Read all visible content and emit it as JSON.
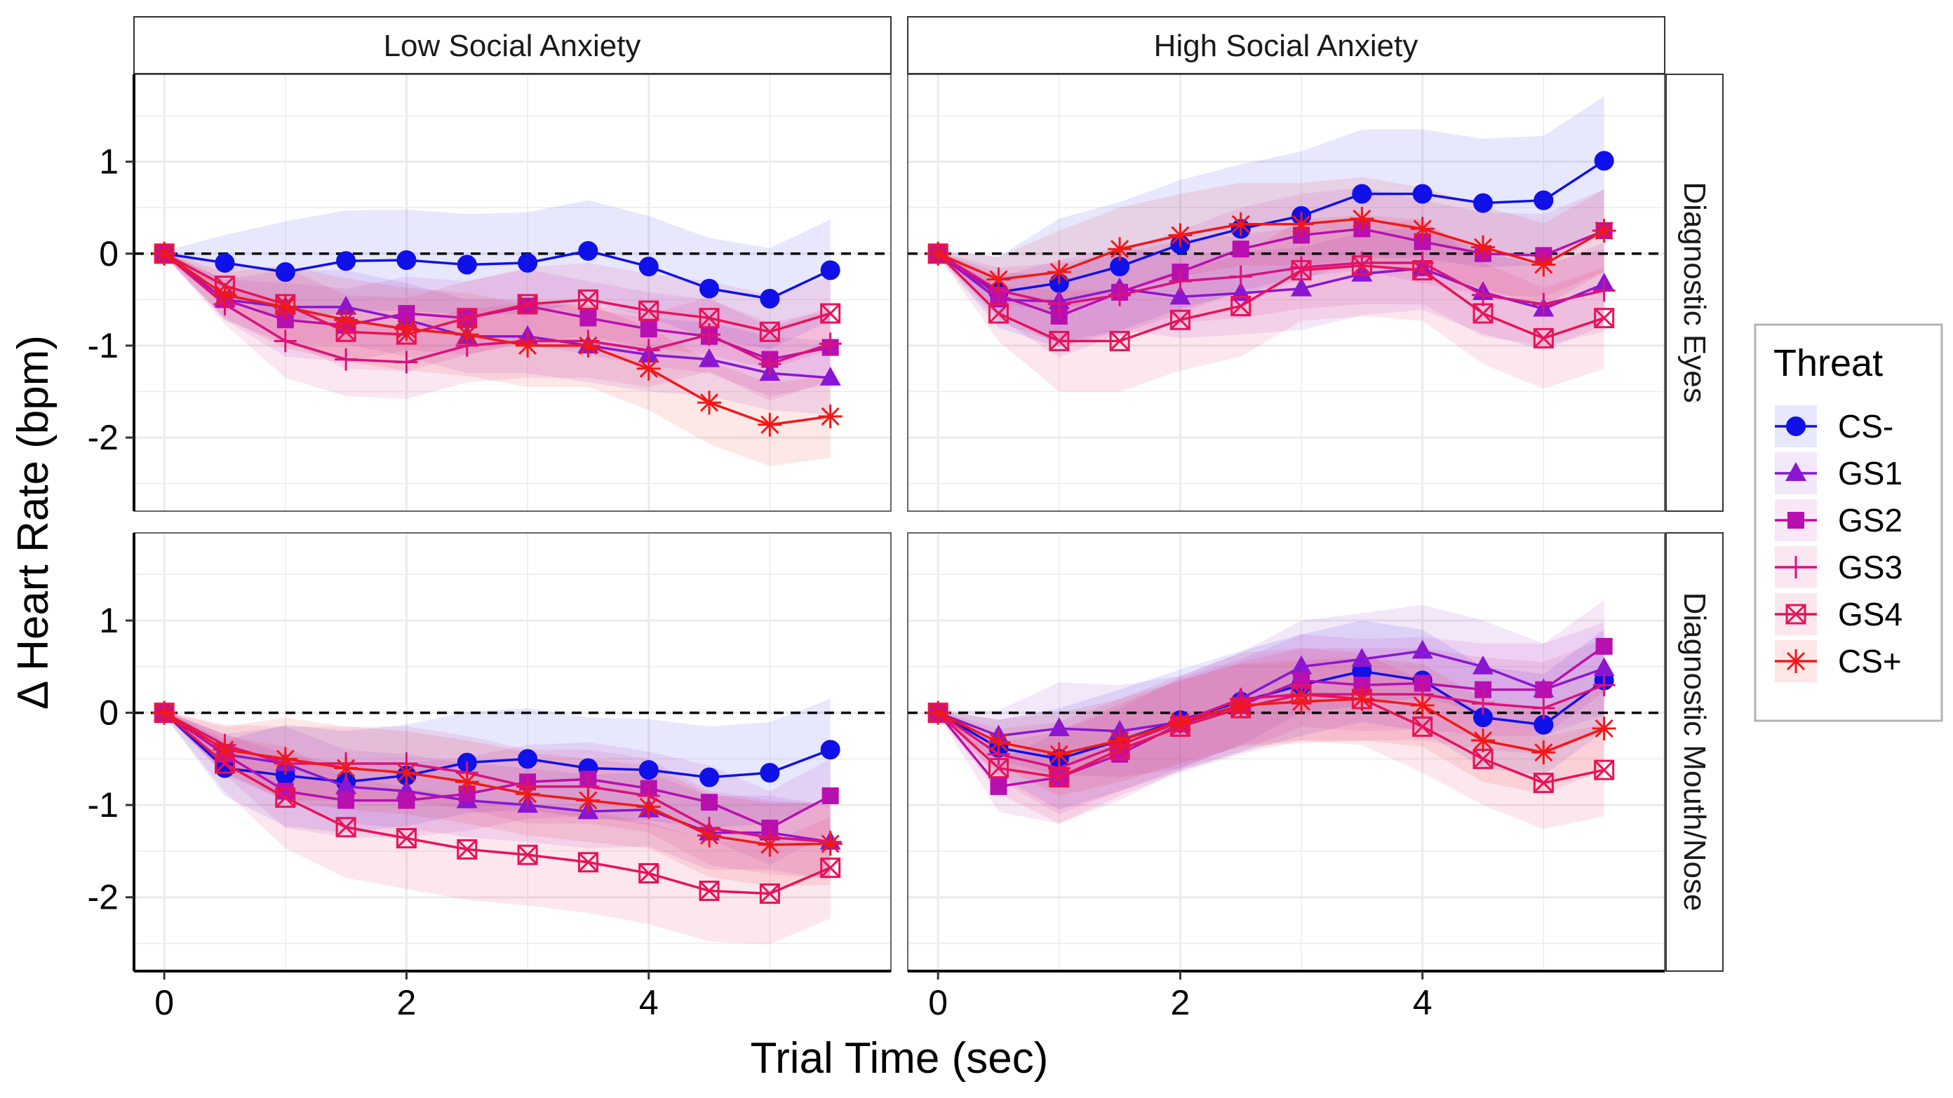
{
  "chart_data": {
    "type": "line",
    "xlabel": "Trial Time (sec)",
    "ylabel": "Δ Heart Rate (bpm)",
    "xlim": [
      -0.25,
      6.0
    ],
    "ylim": [
      -2.8,
      1.95
    ],
    "x_ticks": [
      0,
      2,
      4
    ],
    "y_ticks": [
      1,
      0,
      -1,
      -2
    ],
    "x": [
      0,
      0.5,
      1,
      1.5,
      2,
      2.5,
      3,
      3.5,
      4,
      4.5,
      5,
      5.5
    ],
    "reference_line": 0,
    "grid": true,
    "columns": [
      "Low Social Anxiety",
      "High Social Anxiety"
    ],
    "rows": [
      "Diagnostic Eyes",
      "Diagnostic Mouth/Nose"
    ],
    "legend": {
      "title": "Threat",
      "position": "right",
      "entries": [
        "CS-",
        "GS1",
        "GS2",
        "GS3",
        "GS4",
        "CS+"
      ]
    },
    "series_style": {
      "CS-": {
        "color": "#1010E8",
        "marker": "circle"
      },
      "GS1": {
        "color": "#8A16D2",
        "marker": "triangle"
      },
      "GS2": {
        "color": "#B80FB0",
        "marker": "square"
      },
      "GS3": {
        "color": "#D8127E",
        "marker": "plus"
      },
      "GS4": {
        "color": "#E81258",
        "marker": "boxx"
      },
      "CS+": {
        "color": "#F01818",
        "marker": "asterisk"
      }
    },
    "panels": [
      {
        "column": "Low Social Anxiety",
        "row": "Diagnostic Eyes",
        "series": [
          {
            "name": "CS-",
            "values": [
              0,
              -0.1,
              -0.2,
              -0.08,
              -0.07,
              -0.12,
              -0.1,
              0.03,
              -0.14,
              -0.38,
              -0.49,
              -0.18
            ],
            "band": 0.55
          },
          {
            "name": "GS1",
            "values": [
              0,
              -0.5,
              -0.58,
              -0.58,
              -0.72,
              -0.9,
              -0.9,
              -1.0,
              -1.1,
              -1.15,
              -1.3,
              -1.35
            ],
            "band": 0.4
          },
          {
            "name": "GS2",
            "values": [
              0,
              -0.5,
              -0.72,
              -0.78,
              -0.65,
              -0.7,
              -0.57,
              -0.7,
              -0.82,
              -0.9,
              -1.15,
              -1.02
            ],
            "band": 0.4
          },
          {
            "name": "GS3",
            "values": [
              0,
              -0.55,
              -0.95,
              -1.15,
              -1.18,
              -1.0,
              -0.95,
              -0.95,
              -1.05,
              -0.88,
              -1.2,
              -0.98
            ],
            "band": 0.4
          },
          {
            "name": "GS4",
            "values": [
              0,
              -0.35,
              -0.55,
              -0.85,
              -0.88,
              -0.7,
              -0.55,
              -0.5,
              -0.62,
              -0.7,
              -0.85,
              -0.65
            ],
            "band": 0.4
          },
          {
            "name": "CS+",
            "values": [
              0,
              -0.45,
              -0.58,
              -0.72,
              -0.82,
              -0.88,
              -1.0,
              -1.0,
              -1.25,
              -1.62,
              -1.86,
              -1.77
            ],
            "band": 0.45
          }
        ]
      },
      {
        "column": "High Social Anxiety",
        "row": "Diagnostic Eyes",
        "series": [
          {
            "name": "CS-",
            "values": [
              0,
              -0.42,
              -0.32,
              -0.14,
              0.1,
              0.27,
              0.41,
              0.65,
              0.65,
              0.55,
              0.58,
              1.01
            ],
            "band": 0.7
          },
          {
            "name": "GS1",
            "values": [
              0,
              -0.5,
              -0.52,
              -0.38,
              -0.47,
              -0.43,
              -0.38,
              -0.22,
              -0.16,
              -0.42,
              -0.6,
              -0.33
            ],
            "band": 0.45
          },
          {
            "name": "GS2",
            "values": [
              0,
              -0.45,
              -0.68,
              -0.42,
              -0.2,
              0.05,
              0.2,
              0.27,
              0.13,
              0.0,
              -0.02,
              0.25
            ],
            "band": 0.45
          },
          {
            "name": "GS3",
            "values": [
              0,
              -0.4,
              -0.55,
              -0.45,
              -0.3,
              -0.25,
              -0.15,
              -0.1,
              -0.1,
              -0.45,
              -0.55,
              -0.4
            ],
            "band": 0.45
          },
          {
            "name": "GS4",
            "values": [
              0,
              -0.65,
              -0.95,
              -0.95,
              -0.72,
              -0.57,
              -0.18,
              -0.13,
              -0.18,
              -0.65,
              -0.92,
              -0.7
            ],
            "band": 0.55
          },
          {
            "name": "CS+",
            "values": [
              0,
              -0.28,
              -0.2,
              0.05,
              0.2,
              0.32,
              0.32,
              0.38,
              0.27,
              0.07,
              -0.12,
              0.25
            ],
            "band": 0.45
          }
        ]
      },
      {
        "column": "Low Social Anxiety",
        "row": "Diagnostic Mouth/Nose",
        "series": [
          {
            "name": "CS-",
            "values": [
              0,
              -0.6,
              -0.68,
              -0.75,
              -0.68,
              -0.54,
              -0.5,
              -0.6,
              -0.62,
              -0.7,
              -0.65,
              -0.4
            ],
            "band": 0.55
          },
          {
            "name": "GS1",
            "values": [
              0,
              -0.45,
              -0.55,
              -0.8,
              -0.85,
              -0.95,
              -1.0,
              -1.07,
              -1.05,
              -1.3,
              -1.3,
              -1.4
            ],
            "band": 0.4
          },
          {
            "name": "GS2",
            "values": [
              0,
              -0.45,
              -0.85,
              -0.95,
              -0.95,
              -0.88,
              -0.75,
              -0.72,
              -0.82,
              -0.97,
              -1.25,
              -0.9
            ],
            "band": 0.4
          },
          {
            "name": "GS3",
            "values": [
              0,
              -0.35,
              -0.55,
              -0.55,
              -0.55,
              -0.65,
              -0.8,
              -0.8,
              -0.9,
              -1.25,
              -1.35,
              -1.4
            ],
            "band": 0.4
          },
          {
            "name": "GS4",
            "values": [
              0,
              -0.55,
              -0.92,
              -1.24,
              -1.36,
              -1.48,
              -1.54,
              -1.62,
              -1.74,
              -1.93,
              -1.96,
              -1.68
            ],
            "band": 0.55
          },
          {
            "name": "CS+",
            "values": [
              0,
              -0.4,
              -0.5,
              -0.6,
              -0.65,
              -0.75,
              -0.88,
              -0.95,
              -1.02,
              -1.33,
              -1.43,
              -1.42
            ],
            "band": 0.45
          }
        ]
      },
      {
        "column": "High Social Anxiety",
        "row": "Diagnostic Mouth/Nose",
        "series": [
          {
            "name": "CS-",
            "values": [
              0,
              -0.38,
              -0.5,
              -0.3,
              -0.08,
              0.12,
              0.3,
              0.45,
              0.35,
              -0.05,
              -0.13,
              0.35
            ],
            "band": 0.55
          },
          {
            "name": "GS1",
            "values": [
              0,
              -0.25,
              -0.17,
              -0.2,
              -0.1,
              0.15,
              0.5,
              0.58,
              0.67,
              0.5,
              0.25,
              0.48
            ],
            "band": 0.5
          },
          {
            "name": "GS2",
            "values": [
              0,
              -0.8,
              -0.7,
              -0.45,
              -0.12,
              0.08,
              0.35,
              0.3,
              0.32,
              0.25,
              0.25,
              0.72
            ],
            "band": 0.5
          },
          {
            "name": "GS3",
            "values": [
              0,
              -0.45,
              -0.6,
              -0.35,
              -0.1,
              0.15,
              0.2,
              0.2,
              0.2,
              0.1,
              0.05,
              0.3
            ],
            "band": 0.5
          },
          {
            "name": "GS4",
            "values": [
              0,
              -0.6,
              -0.7,
              -0.4,
              -0.15,
              0.05,
              0.2,
              0.15,
              -0.15,
              -0.5,
              -0.76,
              -0.62
            ],
            "band": 0.5
          },
          {
            "name": "CS+",
            "values": [
              0,
              -0.32,
              -0.45,
              -0.3,
              -0.1,
              0.08,
              0.12,
              0.15,
              0.08,
              -0.3,
              -0.43,
              -0.17
            ],
            "band": 0.45
          }
        ]
      }
    ]
  }
}
